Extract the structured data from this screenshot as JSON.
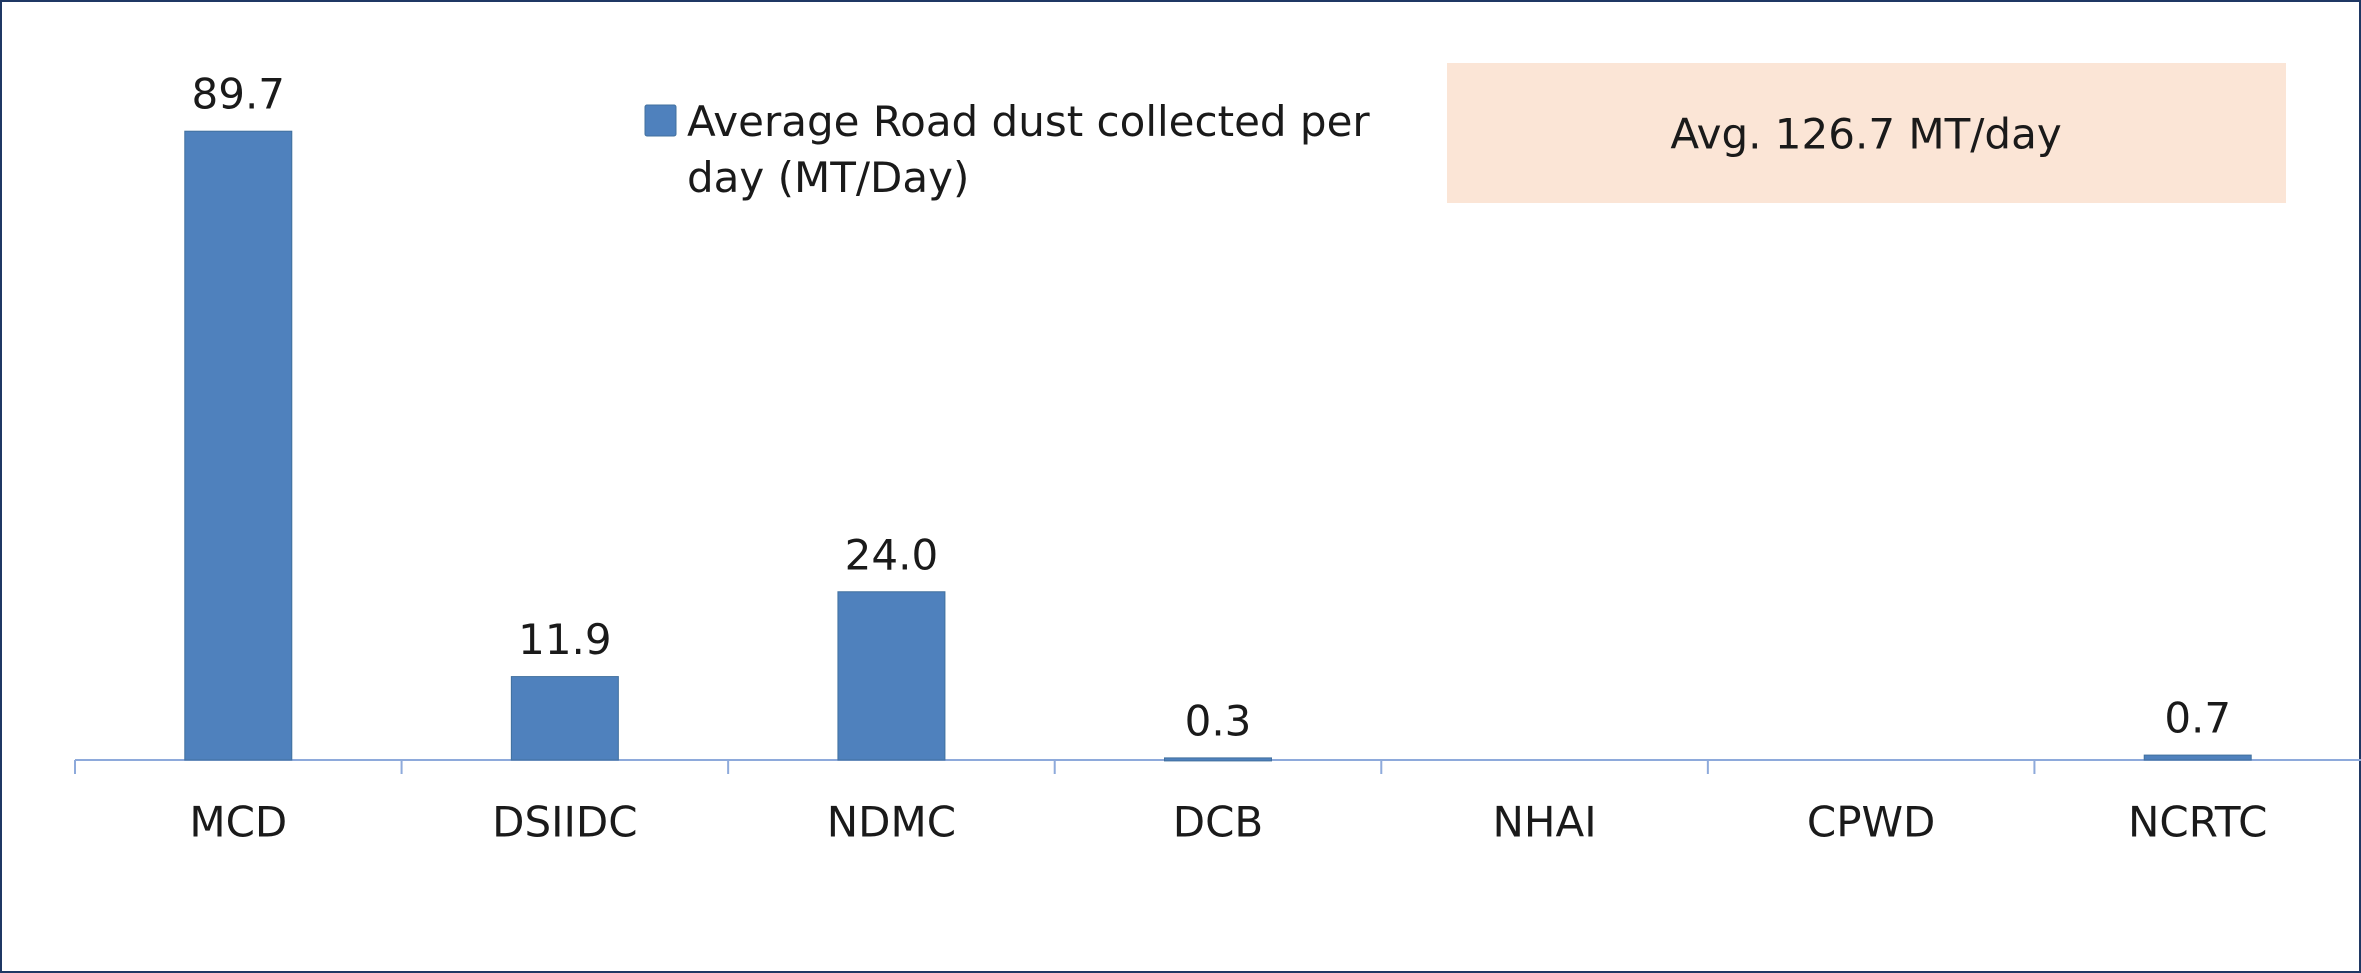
{
  "chart_data": {
    "type": "bar",
    "categories": [
      "MCD",
      "DSIIDC",
      "NDMC",
      "DCB",
      "NHAI",
      "CPWD",
      "NCRTC"
    ],
    "series": [
      {
        "name": "Average Road dust collected per day (MT/Day)",
        "color": "#4f81bd",
        "values": [
          89.7,
          11.9,
          24.0,
          0.3,
          null,
          null,
          0.7
        ],
        "value_labels": [
          "89.7",
          "11.9",
          "24.0",
          "0.3",
          null,
          null,
          "0.7"
        ]
      }
    ],
    "ylim": [
      0,
      100
    ],
    "legend": "top",
    "annotations": [
      "Avg. 126.7 MT/day"
    ]
  }
}
